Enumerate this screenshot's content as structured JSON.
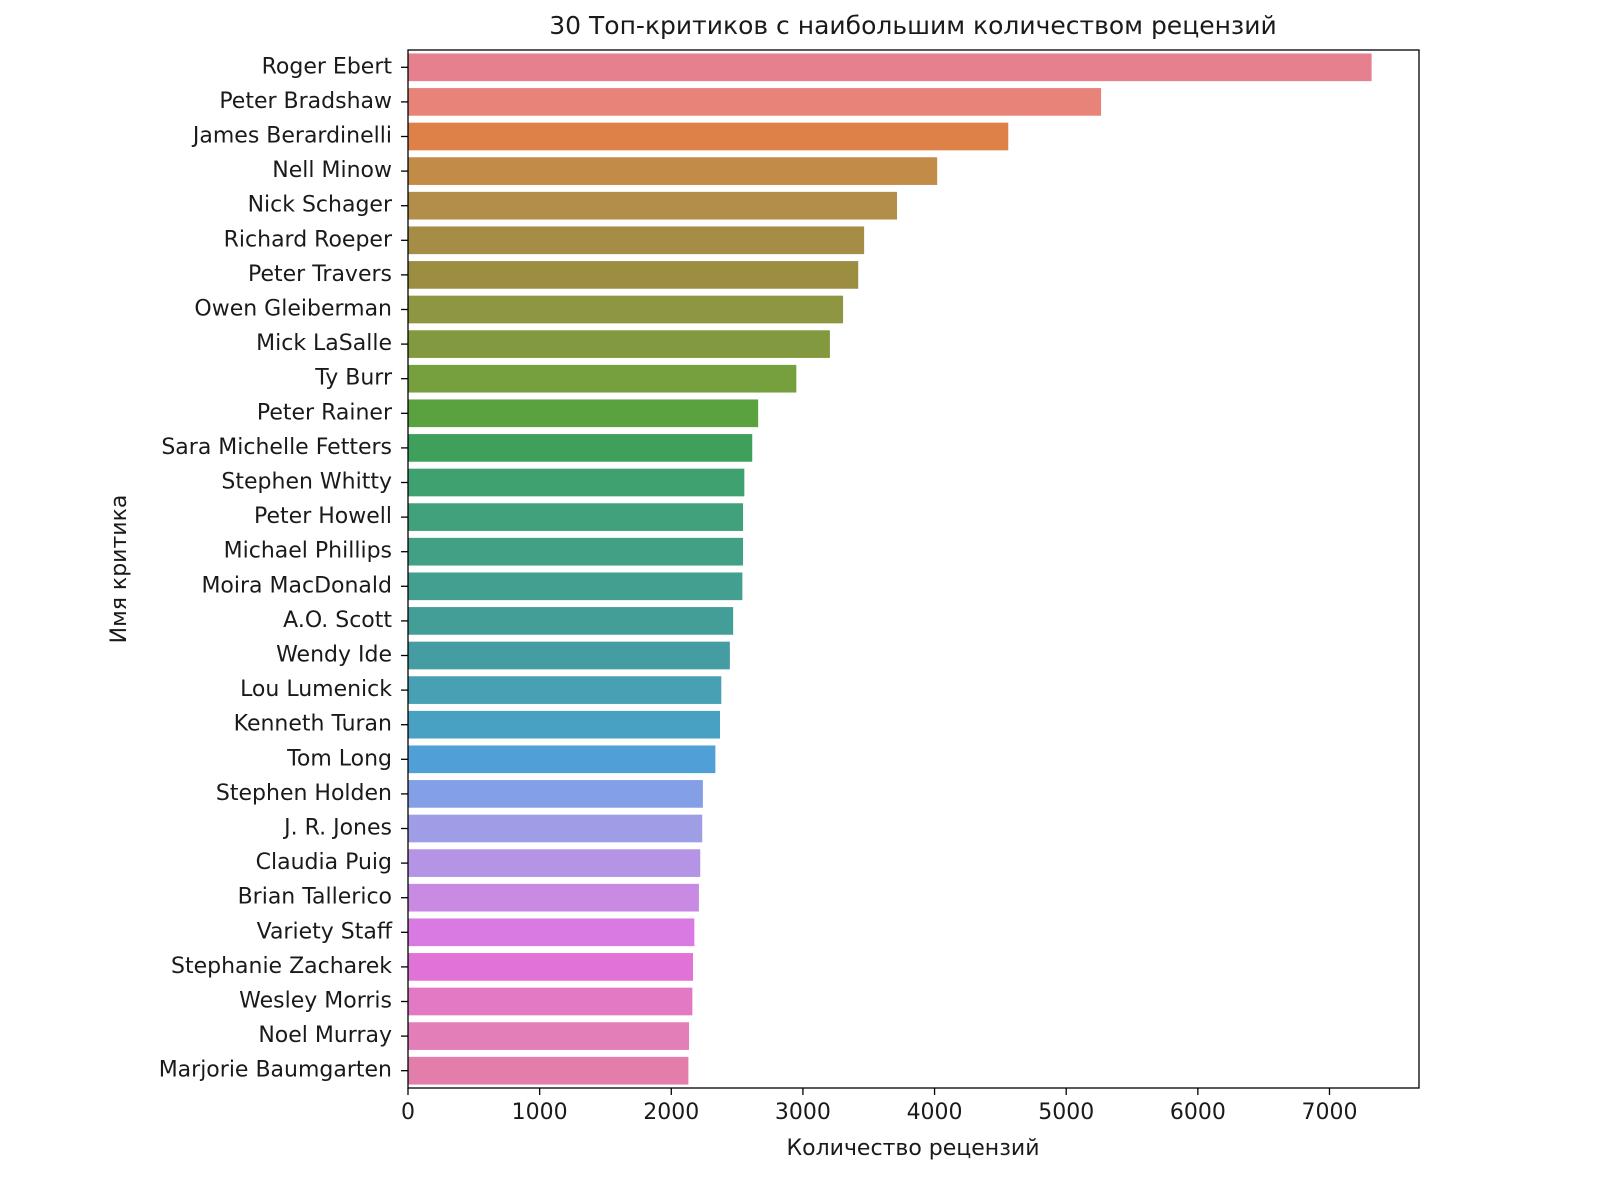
{
  "chart_data": {
    "type": "barh",
    "title": "30 Топ-критиков с наибольшим количеством рецензий",
    "xlabel": "Количество рецензий",
    "ylabel": "Имя критика",
    "categories": [
      "Roger Ebert",
      "Peter Bradshaw",
      "James Berardinelli",
      "Nell Minow",
      "Nick Schager",
      "Richard Roeper",
      "Peter Travers",
      "Owen Gleiberman",
      "Mick LaSalle",
      "Ty Burr",
      "Peter Rainer",
      "Sara Michelle Fetters",
      "Stephen Whitty",
      "Peter Howell",
      "Michael Phillips",
      "Moira MacDonald",
      "A.O. Scott",
      "Wendy Ide",
      "Lou Lumenick",
      "Kenneth Turan",
      "Tom Long",
      "Stephen Holden",
      "J. R. Jones",
      "Claudia Puig",
      "Brian Tallerico",
      "Variety Staff",
      "Stephanie Zacharek",
      "Wesley Morris",
      "Noel Murray",
      "Marjorie Baumgarten"
    ],
    "values": [
      7320,
      5265,
      4560,
      4020,
      3715,
      3465,
      3420,
      3305,
      3205,
      2950,
      2660,
      2615,
      2555,
      2545,
      2545,
      2540,
      2470,
      2445,
      2380,
      2370,
      2335,
      2240,
      2235,
      2220,
      2210,
      2175,
      2165,
      2160,
      2135,
      2130
    ],
    "colors": [
      "#e6808f",
      "#e8837a",
      "#de8149",
      "#c38b48",
      "#b28e4a",
      "#a68d45",
      "#9b8e41",
      "#8f9641",
      "#839940",
      "#76a03e",
      "#5aa23f",
      "#3fa05b",
      "#40a170",
      "#41a17c",
      "#42a185",
      "#439f8f",
      "#449e98",
      "#459ca3",
      "#47a0b4",
      "#48a0c2",
      "#519fd7",
      "#839fe6",
      "#9f9de6",
      "#b594e6",
      "#c98ae3",
      "#d97ae2",
      "#e173d6",
      "#e379c5",
      "#e47eb8",
      "#e37da9"
    ],
    "xlim": [
      0,
      7680
    ],
    "xticks": [
      0,
      1000,
      2000,
      3000,
      4000,
      5000,
      6000,
      7000
    ],
    "grid": false
  }
}
